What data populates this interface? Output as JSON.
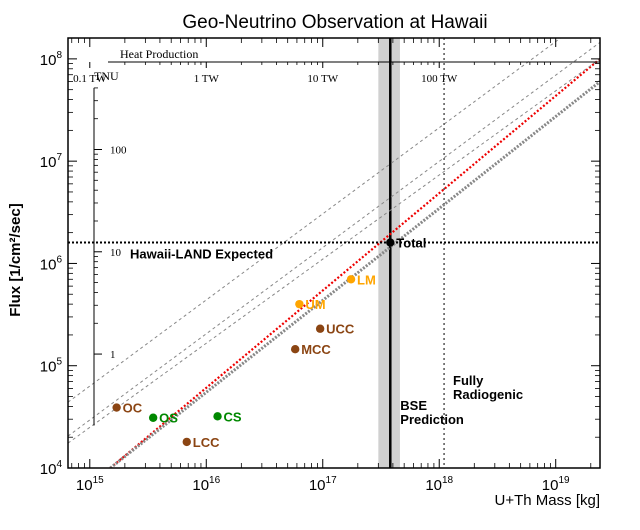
{
  "chart_data": {
    "type": "scatter",
    "title": "Geo-Neutrino Observation at Hawaii",
    "xlabel": "U+Th Mass [kg]",
    "ylabel": "Flux [1/cm²/sec]",
    "x_scale": "log",
    "y_scale": "log",
    "xlim": [
      650000000000000.0,
      2.4e+19
    ],
    "ylim": [
      10000.0,
      160000000.0
    ],
    "x_ticks": [
      {
        "value": 1000000000000000.0,
        "base": "10",
        "exp": "15"
      },
      {
        "value": 1e+16,
        "base": "10",
        "exp": "16"
      },
      {
        "value": 1e+17,
        "base": "10",
        "exp": "17"
      },
      {
        "value": 1e+18,
        "base": "10",
        "exp": "18"
      },
      {
        "value": 1e+19,
        "base": "10",
        "exp": "19"
      }
    ],
    "y_ticks": [
      {
        "value": 10000.0,
        "base": "10",
        "exp": "4"
      },
      {
        "value": 100000.0,
        "base": "10",
        "exp": "5"
      },
      {
        "value": 1000000.0,
        "base": "10",
        "exp": "6"
      },
      {
        "value": 10000000.0,
        "base": "10",
        "exp": "7"
      },
      {
        "value": 100000000.0,
        "base": "10",
        "exp": "8"
      }
    ],
    "heat_axis": {
      "label": "Heat Production",
      "ticks": [
        {
          "label": "0.1 TW",
          "mass": 1000000000000000.0
        },
        {
          "label": "1 TW",
          "mass": 1e+16
        },
        {
          "label": "10 TW",
          "mass": 1e+17
        },
        {
          "label": "100 TW",
          "mass": 1e+18
        }
      ]
    },
    "tnu_axis": {
      "label": "TNU",
      "ticks": [
        {
          "label": "1",
          "flux": 130000.0
        },
        {
          "label": "10",
          "flux": 1300000.0
        },
        {
          "label": "100",
          "flux": 13000000.0
        }
      ],
      "flux_range": [
        26000.0,
        52000000.0
      ]
    },
    "points": [
      {
        "label": "OC",
        "x": 1700000000000000.0,
        "y": 39000.0,
        "color": "#8b4513"
      },
      {
        "label": "OS",
        "x": 3500000000000000.0,
        "y": 31000.0,
        "color": "#008800"
      },
      {
        "label": "LCC",
        "x": 6800000000000000.0,
        "y": 18000.0,
        "color": "#8b4513"
      },
      {
        "label": "CS",
        "x": 1.25e+16,
        "y": 32000.0,
        "color": "#008800"
      },
      {
        "label": "MCC",
        "x": 5.8e+16,
        "y": 145000.0,
        "color": "#8b4513"
      },
      {
        "label": "UCC",
        "x": 9.5e+16,
        "y": 230000.0,
        "color": "#8b4513"
      },
      {
        "label": "UM",
        "x": 6.3e+16,
        "y": 400000.0,
        "color": "#ffa500"
      },
      {
        "label": "LM",
        "x": 1.75e+17,
        "y": 700000.0,
        "color": "#ffa500"
      },
      {
        "label": "Total",
        "x": 3.8e+17,
        "y": 1600000.0,
        "color": "#000000"
      }
    ],
    "reference_lines": [
      {
        "from": [
          1500000000000000.0,
          10000.0
        ],
        "to": [
          2.4e+19,
          100000000.0
        ],
        "color": "#ee0000",
        "style": "dotted"
      },
      {
        "from": [
          1500000000000000.0,
          10000.0
        ],
        "to": [
          2.4e+19,
          60000000.0
        ],
        "color": "#888888",
        "style": "dotted-thick"
      },
      {
        "from": [
          650000000000000.0,
          17500.0
        ],
        "to": [
          2.4e+19,
          100000000.0
        ],
        "color": "#888888",
        "style": "dotted"
      },
      {
        "from": [
          650000000000000.0,
          20500.0
        ],
        "to": [
          2.4e+19,
          145000000.0
        ],
        "color": "#888888",
        "style": "dotted"
      },
      {
        "from": [
          650000000000000.0,
          44000.0
        ],
        "to": [
          1.1e+19,
          160000000.0
        ],
        "color": "#888888",
        "style": "dotted"
      }
    ],
    "expected_flux": {
      "label": "Hawaii-LAND Expected",
      "value": 1600000.0
    },
    "bse_band": {
      "x_min": 3e+17,
      "x_max": 4.6e+17,
      "center": 3.8e+17,
      "label_lines": [
        "BSE",
        "Prediction"
      ]
    },
    "fully_radiogenic": {
      "x": 1.1e+18,
      "label_lines": [
        "Fully",
        "Radiogenic"
      ]
    }
  }
}
